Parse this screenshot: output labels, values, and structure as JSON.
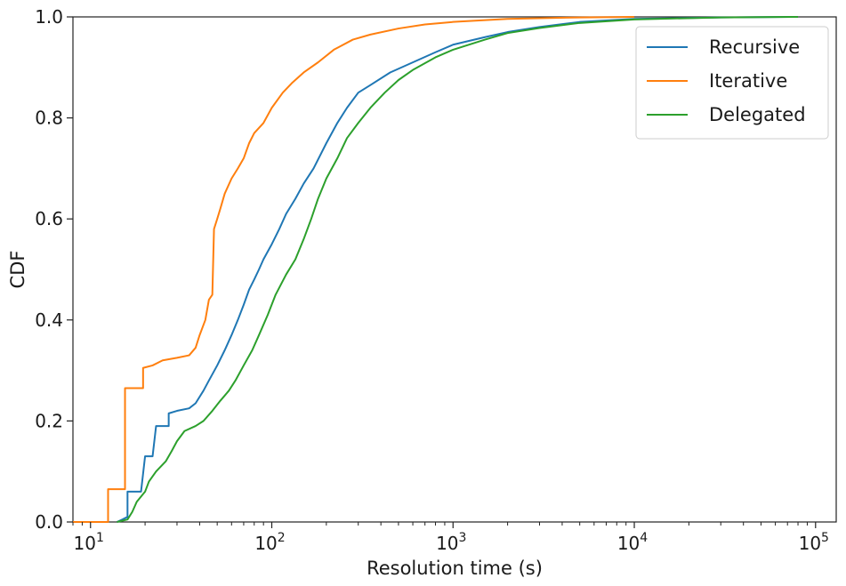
{
  "chart_data": {
    "type": "line",
    "xlabel": "Resolution time (s)",
    "ylabel": "CDF",
    "xscale": "log",
    "xlim": [
      8,
      130000
    ],
    "ylim": [
      0,
      1
    ],
    "xticks": [
      {
        "value": 10,
        "base": "10",
        "exp": "1"
      },
      {
        "value": 100,
        "base": "10",
        "exp": "2"
      },
      {
        "value": 1000,
        "base": "10",
        "exp": "3"
      },
      {
        "value": 10000,
        "base": "10",
        "exp": "4"
      },
      {
        "value": 100000,
        "base": "10",
        "exp": "5"
      }
    ],
    "yticks": [
      "0.0",
      "0.2",
      "0.4",
      "0.6",
      "0.8",
      "1.0"
    ],
    "grid": false,
    "legend_position": "top-right",
    "series": [
      {
        "name": "Recursive",
        "color": "#1f77b4",
        "points": [
          [
            14,
            0
          ],
          [
            15,
            0.005
          ],
          [
            16,
            0.01
          ],
          [
            16,
            0.06
          ],
          [
            19,
            0.06
          ],
          [
            20,
            0.13
          ],
          [
            22,
            0.13
          ],
          [
            23,
            0.19
          ],
          [
            27,
            0.19
          ],
          [
            27,
            0.215
          ],
          [
            30,
            0.22
          ],
          [
            35,
            0.225
          ],
          [
            38,
            0.235
          ],
          [
            42,
            0.26
          ],
          [
            45,
            0.28
          ],
          [
            50,
            0.31
          ],
          [
            55,
            0.34
          ],
          [
            60,
            0.37
          ],
          [
            65,
            0.4
          ],
          [
            70,
            0.43
          ],
          [
            75,
            0.46
          ],
          [
            80,
            0.48
          ],
          [
            85,
            0.5
          ],
          [
            90,
            0.52
          ],
          [
            100,
            0.55
          ],
          [
            110,
            0.58
          ],
          [
            120,
            0.61
          ],
          [
            135,
            0.64
          ],
          [
            150,
            0.67
          ],
          [
            170,
            0.7
          ],
          [
            200,
            0.75
          ],
          [
            230,
            0.79
          ],
          [
            260,
            0.82
          ],
          [
            300,
            0.85
          ],
          [
            350,
            0.865
          ],
          [
            450,
            0.89
          ],
          [
            600,
            0.91
          ],
          [
            800,
            0.93
          ],
          [
            1000,
            0.945
          ],
          [
            1500,
            0.96
          ],
          [
            2000,
            0.97
          ],
          [
            3000,
            0.98
          ],
          [
            5000,
            0.99
          ],
          [
            10000,
            0.996
          ],
          [
            30000,
            0.999
          ],
          [
            80000,
            1.0
          ]
        ]
      },
      {
        "name": "Iterative",
        "color": "#ff7f0e",
        "points": [
          [
            8,
            0
          ],
          [
            12.5,
            0
          ],
          [
            12.5,
            0.065
          ],
          [
            15.5,
            0.065
          ],
          [
            15.5,
            0.265
          ],
          [
            19.5,
            0.265
          ],
          [
            19.5,
            0.305
          ],
          [
            22,
            0.31
          ],
          [
            25,
            0.32
          ],
          [
            30,
            0.325
          ],
          [
            35,
            0.33
          ],
          [
            38,
            0.345
          ],
          [
            40,
            0.37
          ],
          [
            43,
            0.4
          ],
          [
            45,
            0.44
          ],
          [
            47,
            0.45
          ],
          [
            48,
            0.58
          ],
          [
            50,
            0.6
          ],
          [
            52,
            0.62
          ],
          [
            55,
            0.65
          ],
          [
            60,
            0.68
          ],
          [
            65,
            0.7
          ],
          [
            70,
            0.72
          ],
          [
            75,
            0.75
          ],
          [
            80,
            0.77
          ],
          [
            90,
            0.79
          ],
          [
            100,
            0.82
          ],
          [
            115,
            0.85
          ],
          [
            130,
            0.87
          ],
          [
            150,
            0.89
          ],
          [
            180,
            0.91
          ],
          [
            220,
            0.935
          ],
          [
            280,
            0.955
          ],
          [
            350,
            0.965
          ],
          [
            500,
            0.977
          ],
          [
            700,
            0.985
          ],
          [
            1000,
            0.99
          ],
          [
            2000,
            0.996
          ],
          [
            5000,
            0.999
          ],
          [
            10000,
            1.0
          ]
        ]
      },
      {
        "name": "Delegated",
        "color": "#2ca02c",
        "points": [
          [
            14,
            0
          ],
          [
            16,
            0.005
          ],
          [
            17,
            0.02
          ],
          [
            18,
            0.04
          ],
          [
            20,
            0.06
          ],
          [
            21,
            0.08
          ],
          [
            23,
            0.1
          ],
          [
            26,
            0.12
          ],
          [
            28,
            0.14
          ],
          [
            30,
            0.16
          ],
          [
            33,
            0.18
          ],
          [
            38,
            0.19
          ],
          [
            42,
            0.2
          ],
          [
            47,
            0.22
          ],
          [
            52,
            0.24
          ],
          [
            58,
            0.26
          ],
          [
            63,
            0.28
          ],
          [
            70,
            0.31
          ],
          [
            78,
            0.34
          ],
          [
            85,
            0.37
          ],
          [
            95,
            0.41
          ],
          [
            105,
            0.45
          ],
          [
            120,
            0.49
          ],
          [
            135,
            0.52
          ],
          [
            150,
            0.56
          ],
          [
            165,
            0.6
          ],
          [
            180,
            0.64
          ],
          [
            200,
            0.68
          ],
          [
            230,
            0.72
          ],
          [
            260,
            0.76
          ],
          [
            300,
            0.79
          ],
          [
            350,
            0.82
          ],
          [
            420,
            0.85
          ],
          [
            500,
            0.875
          ],
          [
            600,
            0.895
          ],
          [
            800,
            0.92
          ],
          [
            1000,
            0.935
          ],
          [
            1500,
            0.955
          ],
          [
            2000,
            0.968
          ],
          [
            3000,
            0.978
          ],
          [
            5000,
            0.988
          ],
          [
            10000,
            0.995
          ],
          [
            30000,
            0.999
          ],
          [
            80000,
            1.0
          ]
        ]
      }
    ]
  }
}
